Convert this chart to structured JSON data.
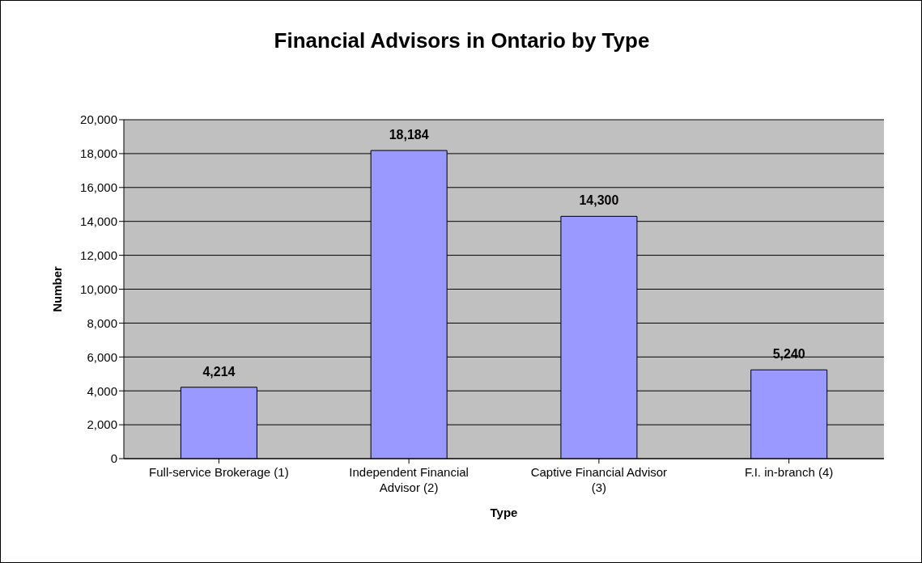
{
  "chart_data": {
    "type": "bar",
    "title": "Financial Advisors in Ontario by Type",
    "xlabel": "Type",
    "ylabel": "Number",
    "categories": [
      "Full-service Brokerage (1)",
      "Independent Financial Advisor (2)",
      "Captive Financial Advisor (3)",
      "F.I. in-branch (4)"
    ],
    "values": [
      4214,
      18184,
      14300,
      5240
    ],
    "color": "#9999ff",
    "ylim": [
      0,
      20000
    ],
    "yticks": [
      {
        "value": 0,
        "label": "0"
      },
      {
        "value": 2000,
        "label": "2,000"
      },
      {
        "value": 4000,
        "label": "4,000"
      },
      {
        "value": 6000,
        "label": "6,000"
      },
      {
        "value": 8000,
        "label": "8,000"
      },
      {
        "value": 10000,
        "label": "10,000"
      },
      {
        "value": 12000,
        "label": "12,000"
      },
      {
        "value": 14000,
        "label": "14,000"
      },
      {
        "value": 16000,
        "label": "16,000"
      },
      {
        "value": 18000,
        "label": "18,000"
      },
      {
        "value": 20000,
        "label": "20,000"
      }
    ],
    "value_labels": [
      "4,214",
      "18,184",
      "14,300",
      "5,240"
    ],
    "grid": "y",
    "legend": false
  }
}
